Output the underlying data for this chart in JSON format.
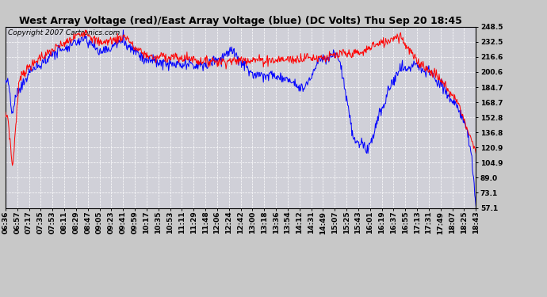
{
  "title": "West Array Voltage (red)/East Array Voltage (blue) (DC Volts) Thu Sep 20 18:45",
  "copyright": "Copyright 2007 Cartronics.com",
  "ylabel_ticks": [
    57.1,
    73.1,
    89.0,
    104.9,
    120.9,
    136.8,
    152.8,
    168.7,
    184.7,
    200.6,
    216.6,
    232.5,
    248.5
  ],
  "ymin": 57.1,
  "ymax": 248.5,
  "background_color": "#c8c8c8",
  "plot_bg_color": "#d0d0d8",
  "grid_color": "#ffffff",
  "title_color": "#000000",
  "title_fontsize": 9,
  "copyright_fontsize": 6.5,
  "tick_label_fontsize": 6.5,
  "red_color": "#ff0000",
  "blue_color": "#0000ff",
  "line_width": 0.7,
  "x_tick_labels": [
    "06:36",
    "06:57",
    "07:17",
    "07:35",
    "07:53",
    "08:11",
    "08:29",
    "08:47",
    "09:05",
    "09:23",
    "09:41",
    "09:59",
    "10:17",
    "10:35",
    "10:53",
    "11:11",
    "11:29",
    "11:48",
    "12:06",
    "12:24",
    "12:42",
    "13:00",
    "13:18",
    "13:36",
    "13:54",
    "14:12",
    "14:31",
    "14:49",
    "15:07",
    "15:25",
    "15:43",
    "16:01",
    "16:19",
    "16:37",
    "16:55",
    "17:13",
    "17:31",
    "17:49",
    "18:07",
    "18:25",
    "18:43"
  ]
}
